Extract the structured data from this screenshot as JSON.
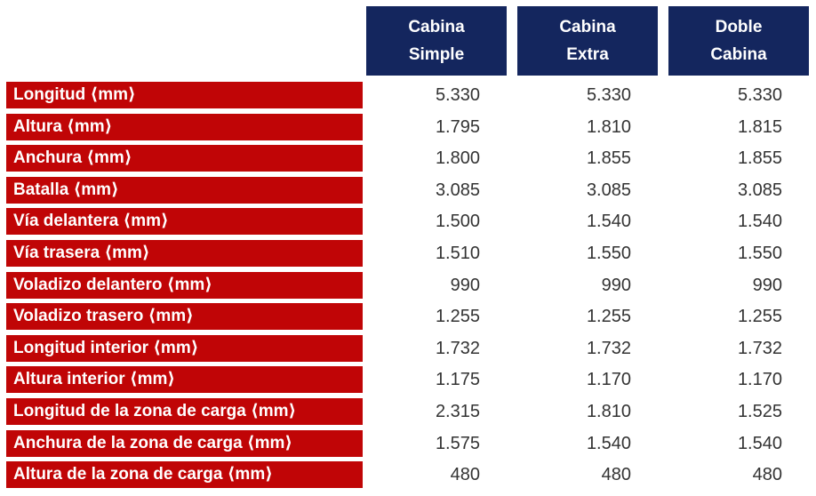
{
  "colors": {
    "row_label_background": "#C00506",
    "header_background": "#14265E",
    "header_text": "#FFFFFF",
    "row_label_text": "#FFFFFF",
    "value_text": "#333333",
    "page_background": "#FFFFFF"
  },
  "table": {
    "columns": [
      {
        "label": "Cabina Simple",
        "line1": "Cabina",
        "line2": "Simple"
      },
      {
        "label": "Cabina Extra",
        "line1": "Cabina",
        "line2": "Extra"
      },
      {
        "label": "Doble Cabina",
        "line1": "Doble",
        "line2": "Cabina"
      }
    ],
    "rows": [
      {
        "label": "Longitud ⟨mm⟩",
        "values": [
          "5.330",
          "5.330",
          "5.330"
        ]
      },
      {
        "label": "Altura ⟨mm⟩",
        "values": [
          "1.795",
          "1.810",
          "1.815"
        ]
      },
      {
        "label": "Anchura ⟨mm⟩",
        "values": [
          "1.800",
          "1.855",
          "1.855"
        ]
      },
      {
        "label": "Batalla ⟨mm⟩",
        "values": [
          "3.085",
          "3.085",
          "3.085"
        ]
      },
      {
        "label": "Vía delantera ⟨mm⟩",
        "values": [
          "1.500",
          "1.540",
          "1.540"
        ]
      },
      {
        "label": "Vía trasera ⟨mm⟩",
        "values": [
          "1.510",
          "1.550",
          "1.550"
        ]
      },
      {
        "label": "Voladizo delantero ⟨mm⟩",
        "values": [
          "990",
          "990",
          "990"
        ]
      },
      {
        "label": "Voladizo trasero ⟨mm⟩",
        "values": [
          "1.255",
          "1.255",
          "1.255"
        ]
      },
      {
        "label": "Longitud interior ⟨mm⟩",
        "values": [
          "1.732",
          "1.732",
          "1.732"
        ]
      },
      {
        "label": "Altura interior ⟨mm⟩",
        "values": [
          "1.175",
          "1.170",
          "1.170"
        ]
      },
      {
        "label": "Longitud de la zona de carga ⟨mm⟩",
        "values": [
          "2.315",
          "1.810",
          "1.525"
        ]
      },
      {
        "label": "Anchura de la zona de carga ⟨mm⟩",
        "values": [
          "1.575",
          "1.540",
          "1.540"
        ]
      },
      {
        "label": "Altura de la zona de carga ⟨mm⟩",
        "values": [
          "480",
          "480",
          "480"
        ]
      }
    ]
  },
  "chart_data": {
    "type": "table",
    "title": "",
    "row_header": "",
    "categories": [
      "Cabina Simple",
      "Cabina Extra",
      "Doble Cabina"
    ],
    "row_labels": [
      "Longitud ⟨mm⟩",
      "Altura ⟨mm⟩",
      "Anchura ⟨mm⟩",
      "Batalla ⟨mm⟩",
      "Vía delantera ⟨mm⟩",
      "Vía trasera ⟨mm⟩",
      "Voladizo delantero ⟨mm⟩",
      "Voladizo trasero ⟨mm⟩",
      "Longitud interior ⟨mm⟩",
      "Altura interior ⟨mm⟩",
      "Longitud de la zona de carga ⟨mm⟩",
      "Anchura de la zona de carga ⟨mm⟩",
      "Altura de la zona de carga ⟨mm⟩"
    ],
    "series": [
      {
        "name": "Cabina Simple",
        "values": [
          5330,
          1795,
          1800,
          3085,
          1500,
          1510,
          990,
          1255,
          1732,
          1175,
          2315,
          1575,
          480
        ]
      },
      {
        "name": "Cabina Extra",
        "values": [
          5330,
          1810,
          1855,
          3085,
          1540,
          1550,
          990,
          1255,
          1732,
          1170,
          1810,
          1540,
          480
        ]
      },
      {
        "name": "Doble Cabina",
        "values": [
          5330,
          1815,
          1855,
          3085,
          1540,
          1550,
          990,
          1255,
          1732,
          1170,
          1525,
          1540,
          480
        ]
      }
    ],
    "unit": "mm",
    "notes": "Vehicle dimension specification table; numbers use dot as thousands separator"
  }
}
